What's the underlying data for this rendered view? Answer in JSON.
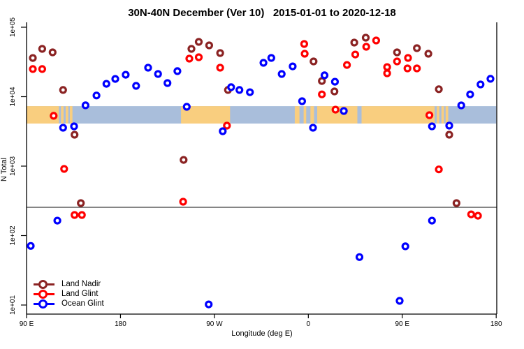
{
  "title": "30N-40N December (Ver 10)   2015-01-01 to 2020-12-18",
  "legend": {
    "items": [
      {
        "label": "Land Nadir",
        "color": "#8B2323"
      },
      {
        "label": "Land Glint",
        "color": "#FF0000"
      },
      {
        "label": "Ocean Glint",
        "color": "#0000FF"
      }
    ]
  },
  "axes": {
    "x": {
      "label": "Longitude (deg E)",
      "ticks": [
        {
          "lon": 90,
          "label": "90 E"
        },
        {
          "lon": 180,
          "label": "180"
        },
        {
          "lon": 270,
          "label": "90 W"
        },
        {
          "lon": 360,
          "label": "0"
        },
        {
          "lon": 450,
          "label": "90 E"
        },
        {
          "lon": 540,
          "label": "180"
        }
      ]
    },
    "y": {
      "label": "N Total",
      "ticks": [
        {
          "exp": 5,
          "label": "1e+05"
        },
        {
          "exp": 4,
          "label": "1e+04"
        },
        {
          "exp": 3,
          "label": "1e+03"
        },
        {
          "exp": 2,
          "label": "1e+02"
        },
        {
          "exp": 1,
          "label": "1e+01"
        }
      ]
    }
  },
  "chart_data": {
    "type": "scatter",
    "title": "30N-40N December (Ver 10)   2015-01-01 to 2020-12-18",
    "xlabel": "Longitude (deg E)",
    "ylabel": "N Total",
    "x_note": "longitude plotted continuously in deg E from 90 to 540 (90E-180-90W-0-90E-180)",
    "xlim": [
      90,
      540
    ],
    "ylim_log10": [
      1,
      5
    ],
    "grid": false,
    "legend_position": "bottom-left",
    "threshold_line_n": 255,
    "map_strip": {
      "ocean_color": "#A9BEDB",
      "land_color": "#F9CE7F",
      "n_top": 7300,
      "n_bottom": 4100,
      "land_segments_deg_e": [
        [
          90,
          121
        ],
        [
          123,
          125.5
        ],
        [
          127.5,
          130
        ],
        [
          131.5,
          134
        ],
        [
          238,
          285
        ],
        [
          347,
          351.5
        ],
        [
          355.5,
          358
        ],
        [
          362,
          365.5
        ],
        [
          368.5,
          407
        ],
        [
          411,
          481
        ],
        [
          483,
          485.5
        ],
        [
          487.5,
          490
        ],
        [
          491.5,
          494
        ]
      ]
    },
    "series": [
      {
        "name": "Land Nadir",
        "color": "#8B2323",
        "points": [
          [
            105,
            48800
          ],
          [
            115,
            43500
          ],
          [
            96,
            36000
          ],
          [
            125,
            12500
          ],
          [
            255,
            61500
          ],
          [
            248,
            48800
          ],
          [
            265,
            54800
          ],
          [
            275.5,
            42500
          ],
          [
            283,
            12500
          ],
          [
            365,
            32200
          ],
          [
            373,
            16800
          ],
          [
            385,
            11900
          ],
          [
            404,
            60100
          ],
          [
            415,
            70600
          ],
          [
            445,
            43500
          ],
          [
            464,
            49900
          ],
          [
            475,
            41500
          ],
          [
            485,
            12800
          ],
          [
            136,
            2830
          ],
          [
            495,
            2830
          ],
          [
            240.5,
            1230
          ],
          [
            142,
            293
          ],
          [
            502,
            293
          ]
        ]
      },
      {
        "name": "Land Glint",
        "color": "#FF0000",
        "points": [
          [
            96,
            25000
          ],
          [
            105,
            25000
          ],
          [
            246,
            35300
          ],
          [
            255,
            37000
          ],
          [
            275.5,
            26100
          ],
          [
            356,
            57400
          ],
          [
            356.5,
            41500
          ],
          [
            373,
            10800
          ],
          [
            386,
            6500
          ],
          [
            397,
            28600
          ],
          [
            405,
            40500
          ],
          [
            415.5,
            52300
          ],
          [
            425,
            64400
          ],
          [
            435.5,
            26700
          ],
          [
            435.5,
            21700
          ],
          [
            445,
            32200
          ],
          [
            455.5,
            36100
          ],
          [
            455,
            25500
          ],
          [
            464,
            25500
          ],
          [
            116,
            5300
          ],
          [
            476,
            5420
          ],
          [
            282,
            3830
          ],
          [
            126,
            912
          ],
          [
            485,
            897
          ],
          [
            240,
            307
          ],
          [
            136,
            198
          ],
          [
            143,
            198
          ],
          [
            516,
            202
          ],
          [
            522.5,
            193
          ]
        ]
      },
      {
        "name": "Ocean Glint",
        "color": "#0000FF",
        "points": [
          [
            206.5,
            26100
          ],
          [
            185,
            20700
          ],
          [
            175,
            18000
          ],
          [
            166.5,
            15300
          ],
          [
            195,
            14300
          ],
          [
            157,
            10400
          ],
          [
            146.5,
            7500
          ],
          [
            216,
            21200
          ],
          [
            225,
            15700
          ],
          [
            234.5,
            23300
          ],
          [
            286,
            13700
          ],
          [
            294,
            12500
          ],
          [
            304,
            11600
          ],
          [
            317,
            30700
          ],
          [
            324.5,
            36100
          ],
          [
            334.5,
            21200
          ],
          [
            345,
            27300
          ],
          [
            354,
            8600
          ],
          [
            375.5,
            20300
          ],
          [
            385.5,
            16400
          ],
          [
            243.5,
            7150
          ],
          [
            364.5,
            3570
          ],
          [
            394,
            6220
          ],
          [
            478.5,
            3740
          ],
          [
            495,
            3830
          ],
          [
            506.5,
            7480
          ],
          [
            515,
            10800
          ],
          [
            525,
            15000
          ],
          [
            534.5,
            18100
          ],
          [
            125,
            3570
          ],
          [
            135.5,
            3740
          ],
          [
            278,
            3180
          ],
          [
            119.5,
            164
          ],
          [
            478.5,
            164
          ],
          [
            94,
            71
          ],
          [
            409,
            49
          ],
          [
            453,
            70
          ],
          [
            264.5,
            10.2
          ],
          [
            447.5,
            11.5
          ]
        ]
      }
    ]
  }
}
